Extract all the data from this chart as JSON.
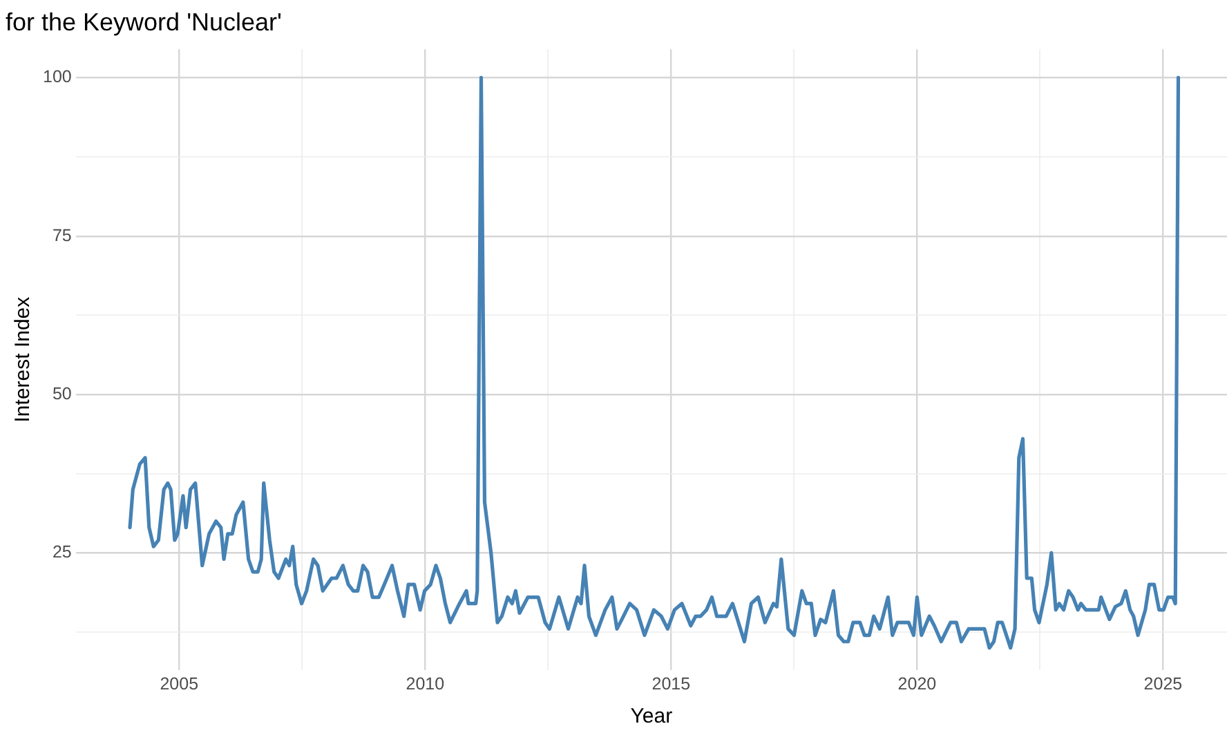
{
  "chart_data": {
    "type": "line",
    "title": "for the Keyword 'Nuclear'",
    "xlabel": "Year",
    "ylabel": "Interest Index",
    "xlim": [
      2002.9,
      2026.3
    ],
    "ylim": [
      6.5,
      104.5
    ],
    "xticks": [
      2005,
      {
        "value": 2007.5,
        "label": null
      },
      2010,
      {
        "value": 2012.5,
        "label": null
      },
      2015,
      {
        "value": 2017.5,
        "label": null
      },
      2020,
      {
        "value": 2022.5,
        "label": null
      },
      2025
    ],
    "yticks": [
      {
        "value": 12.5,
        "label": null
      },
      25,
      {
        "value": 37.5,
        "label": null
      },
      50,
      {
        "value": 62.5,
        "label": null
      },
      75,
      {
        "value": 87.5,
        "label": null
      },
      100
    ],
    "grid": true,
    "marker": "none",
    "line_style": "solid",
    "series": [
      {
        "color": "#4682b4",
        "x": [
          2004.0,
          2004.06,
          2004.2,
          2004.31,
          2004.39,
          2004.48,
          2004.58,
          2004.69,
          2004.77,
          2004.83,
          2004.91,
          2004.97,
          2005.08,
          2005.14,
          2005.23,
          2005.33,
          2005.47,
          2005.61,
          2005.75,
          2005.85,
          2005.91,
          2005.99,
          2006.08,
          2006.16,
          2006.3,
          2006.41,
          2006.5,
          2006.6,
          2006.67,
          2006.72,
          2006.84,
          2006.93,
          2007.02,
          2007.17,
          2007.24,
          2007.31,
          2007.38,
          2007.49,
          2007.59,
          2007.73,
          2007.82,
          2007.92,
          2008.1,
          2008.2,
          2008.33,
          2008.44,
          2008.54,
          2008.63,
          2008.74,
          2008.83,
          2008.93,
          2009.06,
          2009.17,
          2009.33,
          2009.44,
          2009.57,
          2009.66,
          2009.78,
          2009.9,
          2009.99,
          2010.11,
          2010.22,
          2010.31,
          2010.41,
          2010.51,
          2010.7,
          2010.84,
          2010.88,
          2011.03,
          2011.06,
          2011.14,
          2011.21,
          2011.34,
          2011.47,
          2011.56,
          2011.68,
          2011.77,
          2011.84,
          2011.92,
          2012.09,
          2012.2,
          2012.3,
          2012.44,
          2012.53,
          2012.72,
          2012.91,
          2013.1,
          2013.17,
          2013.24,
          2013.33,
          2013.47,
          2013.66,
          2013.8,
          2013.9,
          2014.0,
          2014.16,
          2014.3,
          2014.46,
          2014.65,
          2014.8,
          2014.93,
          2015.07,
          2015.22,
          2015.4,
          2015.5,
          2015.6,
          2015.72,
          2015.83,
          2015.93,
          2016.12,
          2016.25,
          2016.49,
          2016.63,
          2016.77,
          2016.91,
          2017.08,
          2017.15,
          2017.24,
          2017.38,
          2017.5,
          2017.66,
          2017.75,
          2017.85,
          2017.93,
          2018.04,
          2018.14,
          2018.3,
          2018.4,
          2018.51,
          2018.6,
          2018.7,
          2018.84,
          2018.93,
          2019.03,
          2019.12,
          2019.24,
          2019.41,
          2019.5,
          2019.6,
          2019.83,
          2019.93,
          2020.0,
          2020.09,
          2020.25,
          2020.35,
          2020.49,
          2020.68,
          2020.8,
          2020.9,
          2021.05,
          2021.37,
          2021.47,
          2021.56,
          2021.64,
          2021.73,
          2021.9,
          2021.99,
          2022.07,
          2022.15,
          2022.23,
          2022.33,
          2022.39,
          2022.48,
          2022.64,
          2022.73,
          2022.82,
          2022.89,
          2022.98,
          2023.08,
          2023.17,
          2023.27,
          2023.33,
          2023.43,
          2023.69,
          2023.74,
          2023.91,
          2024.03,
          2024.15,
          2024.24,
          2024.33,
          2024.4,
          2024.49,
          2024.64,
          2024.72,
          2024.82,
          2024.92,
          2025.01,
          2025.1,
          2025.2,
          2025.25,
          2025.31
        ],
        "values": [
          29,
          35,
          39,
          40,
          29,
          26,
          27,
          35,
          36,
          35,
          27,
          28,
          34,
          29,
          35,
          36,
          23,
          28,
          30,
          29,
          24,
          28,
          28,
          31,
          33,
          24,
          22,
          22,
          24,
          36,
          27,
          22,
          21,
          24,
          23,
          26,
          20,
          17,
          19,
          24,
          23,
          19,
          21,
          21,
          23,
          20,
          19,
          19,
          23,
          22,
          18,
          18,
          20,
          23,
          19,
          15,
          20,
          20,
          16,
          19,
          20,
          23,
          21,
          17,
          14,
          17,
          19,
          17,
          17,
          19,
          100,
          33,
          25,
          14,
          15,
          18,
          17,
          19,
          15.5,
          18,
          18,
          18,
          14,
          13,
          18,
          13,
          18,
          17,
          23,
          15,
          12,
          16,
          18,
          13,
          14.5,
          17,
          16,
          12,
          16,
          15,
          13,
          16,
          17,
          13.5,
          15,
          15,
          16,
          18,
          15,
          15,
          17,
          11,
          17,
          18,
          14,
          17,
          16.5,
          24,
          13,
          12,
          19,
          17,
          17,
          12,
          14.5,
          14,
          19,
          12,
          11,
          11,
          14,
          14,
          12,
          12,
          15,
          13,
          18,
          12,
          14,
          14,
          12,
          18,
          12,
          15,
          13.5,
          11,
          14,
          14,
          11,
          13,
          13,
          10,
          11,
          14,
          14,
          10,
          13,
          40,
          43,
          21,
          21,
          16,
          14,
          20,
          25,
          16,
          17,
          16,
          19,
          18,
          16,
          17,
          16,
          16,
          18,
          14.5,
          16.5,
          17,
          19,
          16,
          15,
          12,
          16,
          20,
          20,
          16,
          16,
          18,
          18,
          17,
          100
        ]
      }
    ]
  }
}
